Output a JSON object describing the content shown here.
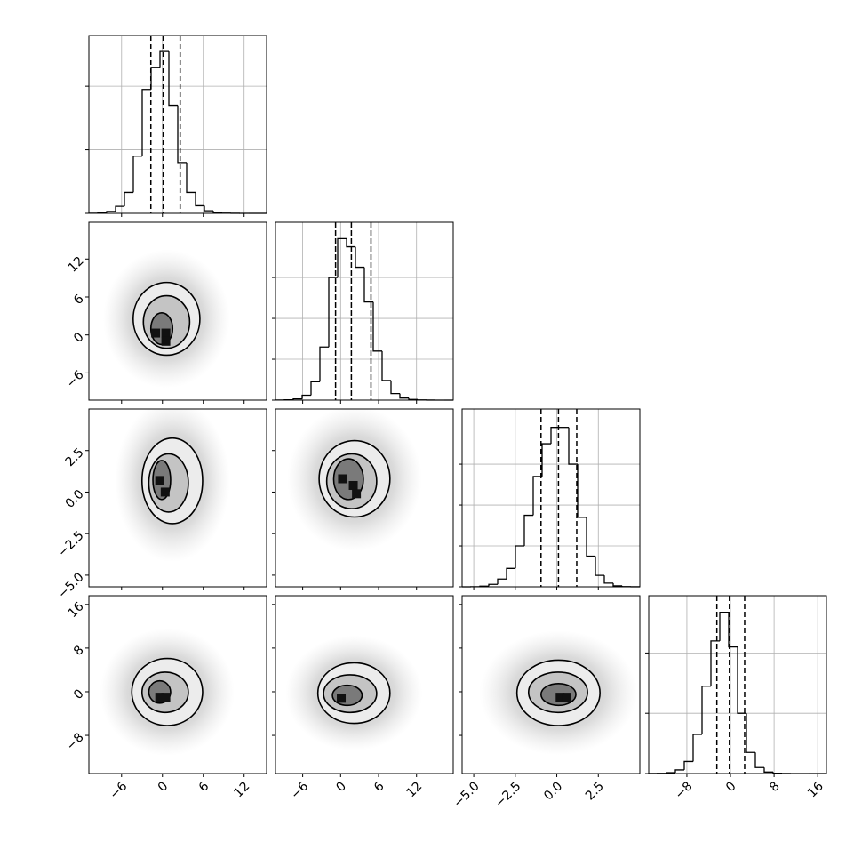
{
  "chart_data": {
    "type": "corner",
    "grid": true,
    "variables": [
      {
        "lim": [
          -10.8,
          15.3
        ],
        "ticks": [
          {
            "value": -6,
            "label": "−6"
          },
          0,
          6,
          12
        ]
      },
      {
        "lim": [
          -10.3,
          17.8
        ],
        "ticks": [
          {
            "value": -6,
            "label": "−6"
          },
          0,
          6,
          12
        ]
      },
      {
        "lim": [
          -5.7,
          5.0
        ],
        "ticks": [
          {
            "value": -5,
            "label": "−5.0"
          },
          {
            "value": -2.5,
            "label": "−2.5"
          },
          {
            "value": 0,
            "label": "0.0"
          },
          2.5
        ]
      },
      {
        "lim": [
          -15,
          17.6
        ],
        "ticks": [
          {
            "value": -8,
            "label": "−8"
          },
          0,
          8,
          16
        ]
      }
    ],
    "histograms": [
      {
        "bins": [
          -10.8,
          -9.495,
          -8.19,
          -6.885,
          -5.58,
          -4.275,
          -2.97,
          -1.665,
          -0.36,
          0.945,
          2.25,
          3.555,
          4.86,
          6.165,
          7.47,
          8.775,
          10.08,
          11.385,
          12.69,
          13.995,
          15.3
        ],
        "counts": [
          2,
          8,
          30,
          110,
          330,
          900,
          1950,
          2300,
          2560,
          1700,
          800,
          330,
          120,
          40,
          12,
          4,
          1,
          0,
          0,
          0
        ],
        "quantiles": [
          -1.7,
          0.1,
          2.6
        ],
        "ylim": [
          0,
          2800
        ],
        "yticks": [
          0,
          1000,
          2000
        ]
      },
      {
        "bins": [
          -10.3,
          -8.895,
          -7.49,
          -6.085,
          -4.68,
          -3.275,
          -1.87,
          -0.465,
          0.94,
          2.345,
          3.75,
          5.155,
          6.56,
          7.965,
          9.37,
          10.775,
          12.18,
          13.585,
          14.99,
          16.395,
          17.8
        ],
        "counts": [
          2,
          8,
          30,
          120,
          450,
          1300,
          3000,
          3950,
          3750,
          3250,
          2400,
          1200,
          480,
          160,
          50,
          15,
          4,
          1,
          0,
          0
        ],
        "quantiles": [
          -0.8,
          1.7,
          4.8
        ],
        "ylim": [
          0,
          4350
        ],
        "yticks": [
          0,
          1000,
          2000,
          3000
        ]
      },
      {
        "bins": [
          -5.7,
          -5.165,
          -4.63,
          -4.095,
          -3.56,
          -3.025,
          -2.49,
          -1.955,
          -1.42,
          -0.885,
          -0.35,
          0.185,
          0.72,
          1.255,
          1.79,
          2.325,
          2.86,
          3.395,
          3.93,
          4.465,
          5.0
        ],
        "counts": [
          0,
          3,
          15,
          60,
          190,
          450,
          1000,
          1750,
          2700,
          3500,
          3900,
          3900,
          3000,
          1700,
          750,
          280,
          90,
          25,
          5,
          1
        ],
        "quantiles": [
          -0.95,
          0.1,
          1.2
        ],
        "ylim": [
          0,
          4350
        ],
        "yticks": [
          0,
          1000,
          2000,
          3000
        ]
      },
      {
        "bins": [
          -15,
          -13.37,
          -11.74,
          -10.11,
          -8.48,
          -6.85,
          -5.22,
          -3.59,
          -1.96,
          -0.33,
          1.3,
          2.93,
          4.56,
          6.19,
          7.82,
          9.45,
          11.08,
          12.71,
          14.34,
          15.97,
          17.6
        ],
        "counts": [
          2,
          8,
          30,
          120,
          400,
          1300,
          2900,
          4400,
          5350,
          4200,
          2000,
          700,
          200,
          50,
          12,
          3,
          1,
          0,
          0,
          0
        ],
        "quantiles": [
          -2.5,
          -0.2,
          2.6
        ],
        "ylim": [
          0,
          5900
        ],
        "yticks": [
          0,
          2000,
          4000
        ]
      }
    ],
    "pairs": [
      {
        "contours": [
          {
            "x": [
              -4.3,
              5.5
            ],
            "y": [
              -3.2,
              8.3
            ]
          },
          {
            "x": [
              -2.8,
              4
            ],
            "y": [
              -2.1,
              6.2
            ]
          },
          {
            "x": [
              -1.7,
              1.5
            ],
            "y": [
              -1.5,
              3.5
            ]
          }
        ],
        "cells": {
          "x": [
            -1,
            0.5,
            0.5
          ],
          "y": [
            0.3,
            0.3,
            -1
          ]
        }
      },
      {
        "contours": [
          {
            "x": [
              -3,
              5.9
            ],
            "y": [
              -1.9,
              3.25
            ]
          },
          {
            "x": [
              -2,
              3.8
            ],
            "y": [
              -1.2,
              2.3
            ]
          },
          {
            "x": [
              -1.4,
              1.2
            ],
            "y": [
              -0.45,
              1.9
            ]
          }
        ],
        "cells": {
          "x": [
            -0.4,
            0.4
          ],
          "y": [
            0.7,
            0
          ]
        }
      },
      {
        "contours": [
          {
            "x": [
              -3.4,
              7.8
            ],
            "y": [
              -1.5,
              3.1
            ]
          },
          {
            "x": [
              -2.2,
              5.7
            ],
            "y": [
              -1,
              2.3
            ]
          },
          {
            "x": [
              -1.1,
              3.6
            ],
            "y": [
              -0.45,
              2
            ]
          }
        ],
        "cells": {
          "x": [
            0.3,
            2,
            2.5
          ],
          "y": [
            0.8,
            0.4,
            -0.1
          ]
        }
      },
      {
        "contours": [
          {
            "x": [
              -4.5,
              5.9
            ],
            "y": [
              -6.2,
              6.1
            ]
          },
          {
            "x": [
              -3,
              3.8
            ],
            "y": [
              -3.8,
              3.6
            ]
          },
          {
            "x": [
              -2,
              1.2
            ],
            "y": [
              -2.1,
              2
            ]
          }
        ],
        "cells": {
          "x": [
            -0.4,
            0.5
          ],
          "y": [
            -1,
            -1
          ]
        }
      },
      {
        "contours": [
          {
            "x": [
              -3.6,
              7.8
            ],
            "y": [
              -5.8,
              5.3
            ]
          },
          {
            "x": [
              -2.7,
              5.7
            ],
            "y": [
              -3.8,
              3.1
            ]
          },
          {
            "x": [
              -1.3,
              3.4
            ],
            "y": [
              -2.5,
              1.2
            ]
          }
        ],
        "cells": {
          "x": [
            0.1
          ],
          "y": [
            -1.2
          ]
        }
      },
      {
        "contours": [
          {
            "x": [
              -2.4,
              2.6
            ],
            "y": [
              -6.2,
              5.8
            ]
          },
          {
            "x": [
              -1.7,
              1.85
            ],
            "y": [
              -3.8,
              3.6
            ]
          },
          {
            "x": [
              -0.95,
              1.15
            ],
            "y": [
              -2.5,
              1.5
            ]
          }
        ],
        "cells": {
          "x": [
            0.2,
            0.6
          ],
          "y": [
            -1,
            -1
          ]
        }
      }
    ]
  }
}
